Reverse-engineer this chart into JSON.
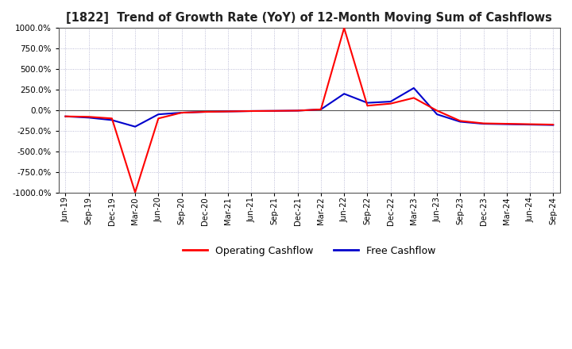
{
  "title": "[1822]  Trend of Growth Rate (YoY) of 12-Month Moving Sum of Cashflows",
  "title_fontsize": 10.5,
  "ylim": [
    -1000,
    1000
  ],
  "yticks": [
    -1000,
    -750,
    -500,
    -250,
    0,
    250,
    500,
    750,
    1000
  ],
  "background_color": "#ffffff",
  "plot_bg_color": "#ffffff",
  "grid_color": "#aaaacc",
  "x_labels": [
    "Jun-19",
    "Sep-19",
    "Dec-19",
    "Mar-20",
    "Jun-20",
    "Sep-20",
    "Dec-20",
    "Mar-21",
    "Jun-21",
    "Sep-21",
    "Dec-21",
    "Mar-22",
    "Jun-22",
    "Sep-22",
    "Dec-22",
    "Mar-23",
    "Jun-23",
    "Sep-23",
    "Dec-23",
    "Mar-24",
    "Jun-24",
    "Sep-24"
  ],
  "op_color": "#ff0000",
  "free_color": "#0000cc",
  "legend_op": "Operating Cashflow",
  "legend_free": "Free Cashflow",
  "op_cf": [
    -75,
    -80,
    -100,
    -1000,
    -100,
    -30,
    -20,
    -15,
    -10,
    -8,
    -5,
    10,
    1000,
    55,
    80,
    150,
    -5,
    -130,
    -160,
    -165,
    -170,
    -175
  ],
  "free_cf": [
    -75,
    -90,
    -120,
    -200,
    -50,
    -30,
    -20,
    -15,
    -10,
    -8,
    -5,
    10,
    200,
    90,
    105,
    270,
    -50,
    -140,
    -165,
    -170,
    -175,
    -180
  ]
}
